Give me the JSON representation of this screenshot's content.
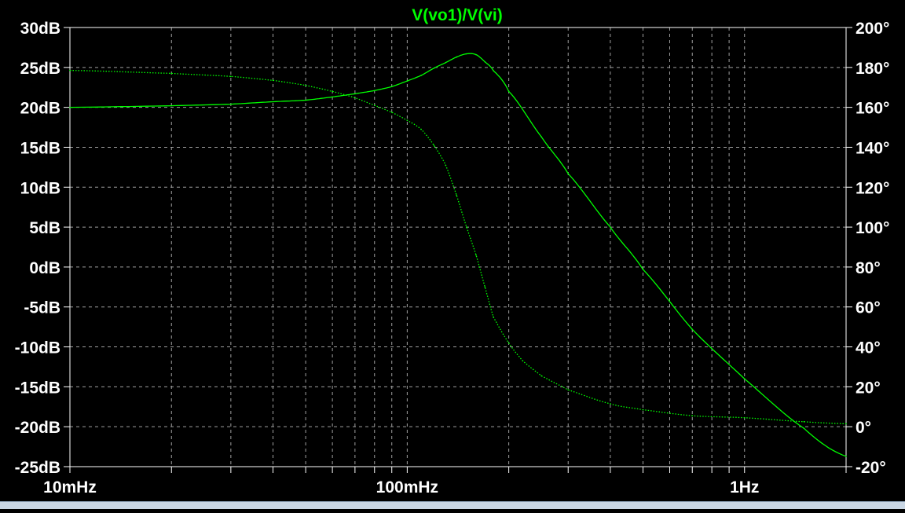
{
  "chart_data": {
    "type": "line",
    "title": "V(vo1)/V(vi)",
    "title_color": "#00ff00",
    "background_color": "#000000",
    "axis_color": "#ffffff",
    "grid_color": "#a0a0a0",
    "grid": true,
    "grid_style": "dashed",
    "x_axis": {
      "scale": "log",
      "unit": "Hz",
      "range": [
        0.01,
        2.0
      ],
      "major_ticks": [
        0.01,
        0.1,
        1
      ],
      "tick_labels": [
        "10mHz",
        "100mHz",
        "1Hz"
      ]
    },
    "y_left": {
      "unit": "dB",
      "range": [
        -25,
        30
      ],
      "ticks": [
        30,
        25,
        20,
        15,
        10,
        5,
        0,
        -5,
        -10,
        -15,
        -20,
        -25
      ],
      "tick_labels": [
        "30dB",
        "25dB",
        "20dB",
        "15dB",
        "10dB",
        "5dB",
        "0dB",
        "-5dB",
        "-10dB",
        "-15dB",
        "-20dB",
        "-25dB"
      ]
    },
    "y_right": {
      "unit": "°",
      "range": [
        -20,
        200
      ],
      "ticks": [
        200,
        180,
        160,
        140,
        120,
        100,
        80,
        60,
        40,
        20,
        0,
        -20
      ],
      "tick_labels": [
        "200°",
        "180°",
        "160°",
        "140°",
        "120°",
        "100°",
        "80°",
        "60°",
        "40°",
        "20°",
        "0°",
        "-20°"
      ]
    },
    "series": [
      {
        "axis": "left",
        "style": "solid",
        "color": "#00ff00",
        "x": [
          0.01,
          0.02,
          0.03,
          0.04,
          0.05,
          0.06,
          0.07,
          0.08,
          0.09,
          0.1,
          0.11,
          0.12,
          0.13,
          0.14,
          0.15,
          0.16,
          0.17,
          0.18,
          0.2,
          0.25,
          0.3,
          0.4,
          0.5,
          0.7,
          1.0,
          1.5,
          2.0
        ],
        "values": [
          20.0,
          20.2,
          20.4,
          20.7,
          20.9,
          21.3,
          21.7,
          22.1,
          22.6,
          23.3,
          24.0,
          24.9,
          25.6,
          26.3,
          26.7,
          26.6,
          25.7,
          24.6,
          22.0,
          16.3,
          11.7,
          5.0,
          -0.3,
          -7.8,
          -14.0,
          -20.2,
          -23.7
        ]
      },
      {
        "axis": "right",
        "style": "dotted",
        "color": "#00ff00",
        "x": [
          0.01,
          0.02,
          0.03,
          0.04,
          0.05,
          0.06,
          0.07,
          0.08,
          0.09,
          0.1,
          0.11,
          0.12,
          0.13,
          0.14,
          0.15,
          0.16,
          0.17,
          0.18,
          0.2,
          0.22,
          0.25,
          0.3,
          0.4,
          0.5,
          0.7,
          1.0,
          1.5,
          2.0
        ],
        "values": [
          178.5,
          177.0,
          175.5,
          173.5,
          171.0,
          168.0,
          164.8,
          161.0,
          157.5,
          153.5,
          149.0,
          141.0,
          131.0,
          116.0,
          100.0,
          86.0,
          70.0,
          55.0,
          42.0,
          33.0,
          25.5,
          18.5,
          11.5,
          8.5,
          5.5,
          4.5,
          2.5,
          1.5
        ]
      }
    ]
  }
}
